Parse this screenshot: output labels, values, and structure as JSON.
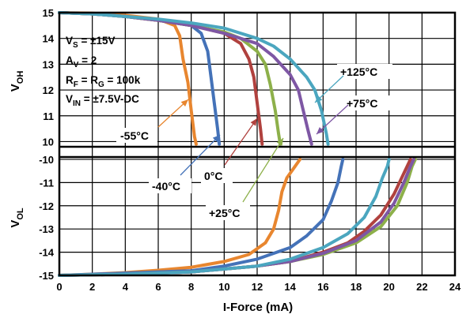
{
  "chart_data": {
    "type": "line",
    "xlabel": "I-Force (mA)",
    "ylabel_top": "V_OH",
    "ylabel_bottom": "V_OL",
    "x_ticks": [
      "0",
      "2",
      "4",
      "6",
      "8",
      "10",
      "12",
      "14",
      "16",
      "18",
      "20",
      "22",
      "24"
    ],
    "y_ticks_top": [
      "15",
      "14",
      "13",
      "12",
      "11",
      "10"
    ],
    "y_ticks_bottom": [
      "-10",
      "-11",
      "-12",
      "-13",
      "-14",
      "-15"
    ],
    "xlim": [
      0,
      24
    ],
    "ylim_top": [
      9.8,
      15
    ],
    "ylim_bottom": [
      -15,
      -9.9
    ],
    "grid": true,
    "conditions": [
      {
        "key": "cond_vs",
        "base": "V",
        "sub": "S",
        "rest": " = ±15V"
      },
      {
        "key": "cond_av",
        "base": "A",
        "sub": "V",
        "rest": " = 2"
      },
      {
        "key": "cond_rf",
        "base": "R",
        "sub": "F",
        "rest": " = R",
        "sub2": "G",
        "rest2": " = 100k"
      },
      {
        "key": "cond_vin",
        "base": "V",
        "sub": "IN",
        "rest": " = ±7.5V-DC"
      }
    ],
    "series": [
      {
        "name": "-55°C",
        "color": "#E8862F",
        "voh": [
          [
            0,
            15
          ],
          [
            2,
            14.98
          ],
          [
            4,
            14.9
          ],
          [
            6,
            14.75
          ],
          [
            7,
            14.5
          ],
          [
            7.3,
            14.1
          ],
          [
            7.5,
            13.2
          ],
          [
            7.8,
            12.3
          ],
          [
            8,
            11.2
          ],
          [
            8.2,
            10.2
          ],
          [
            8.3,
            9.9
          ]
        ],
        "vol": [
          [
            0,
            -15
          ],
          [
            2,
            -14.95
          ],
          [
            4,
            -14.88
          ],
          [
            6,
            -14.78
          ],
          [
            8,
            -14.65
          ],
          [
            10,
            -14.4
          ],
          [
            11.5,
            -14.1
          ],
          [
            12.5,
            -13.6
          ],
          [
            13,
            -13
          ],
          [
            13.3,
            -12.2
          ],
          [
            13.5,
            -11.4
          ],
          [
            13.8,
            -10.8
          ],
          [
            14.3,
            -10.3
          ],
          [
            14.6,
            -10
          ]
        ]
      },
      {
        "name": "-40°C",
        "color": "#4472B8",
        "voh": [
          [
            0,
            15
          ],
          [
            2,
            14.95
          ],
          [
            4,
            14.85
          ],
          [
            6,
            14.7
          ],
          [
            8,
            14.5
          ],
          [
            8.6,
            14.2
          ],
          [
            9,
            13.5
          ],
          [
            9.2,
            12.5
          ],
          [
            9.4,
            11.5
          ],
          [
            9.6,
            10.5
          ],
          [
            9.7,
            9.9
          ]
        ],
        "vol": [
          [
            0,
            -15
          ],
          [
            4,
            -14.9
          ],
          [
            8,
            -14.8
          ],
          [
            10,
            -14.6
          ],
          [
            12,
            -14.3
          ],
          [
            14,
            -13.8
          ],
          [
            15,
            -13.3
          ],
          [
            16,
            -12.6
          ],
          [
            16.5,
            -11.8
          ],
          [
            16.9,
            -11
          ],
          [
            17.1,
            -10.3
          ],
          [
            17.2,
            -10
          ]
        ]
      },
      {
        "name": "0°C",
        "color": "#B0413E",
        "voh": [
          [
            0,
            15
          ],
          [
            2,
            14.95
          ],
          [
            4,
            14.85
          ],
          [
            6,
            14.7
          ],
          [
            8,
            14.5
          ],
          [
            10,
            14.2
          ],
          [
            11,
            13.8
          ],
          [
            11.5,
            13.2
          ],
          [
            11.8,
            12.5
          ],
          [
            12,
            11.5
          ],
          [
            12.2,
            10.5
          ],
          [
            12.3,
            9.9
          ]
        ],
        "vol": [
          [
            0,
            -15
          ],
          [
            4,
            -14.95
          ],
          [
            8,
            -14.85
          ],
          [
            12,
            -14.6
          ],
          [
            14,
            -14.4
          ],
          [
            16,
            -14.0
          ],
          [
            17.5,
            -13.6
          ],
          [
            18.5,
            -13.1
          ],
          [
            19.5,
            -12.4
          ],
          [
            20.3,
            -11.5
          ],
          [
            20.9,
            -10.6
          ],
          [
            21.3,
            -10
          ]
        ]
      },
      {
        "name": "+25°C",
        "color": "#8DB04A",
        "voh": [
          [
            0,
            15
          ],
          [
            2,
            14.95
          ],
          [
            4,
            14.85
          ],
          [
            6,
            14.7
          ],
          [
            8,
            14.5
          ],
          [
            10,
            14.25
          ],
          [
            11,
            14.0
          ],
          [
            12,
            13.5
          ],
          [
            12.5,
            13
          ],
          [
            12.8,
            12.2
          ],
          [
            13.1,
            11.2
          ],
          [
            13.3,
            10.3
          ],
          [
            13.4,
            9.9
          ]
        ],
        "vol": [
          [
            0,
            -15
          ],
          [
            4,
            -14.95
          ],
          [
            8,
            -14.85
          ],
          [
            12,
            -14.6
          ],
          [
            14,
            -14.4
          ],
          [
            16,
            -14.1
          ],
          [
            18,
            -13.6
          ],
          [
            19.5,
            -12.9
          ],
          [
            20.5,
            -12
          ],
          [
            21.1,
            -11
          ],
          [
            21.4,
            -10.3
          ],
          [
            21.6,
            -10
          ]
        ]
      },
      {
        "name": "+75°C",
        "color": "#7E57A4",
        "voh": [
          [
            0,
            15
          ],
          [
            2,
            14.95
          ],
          [
            4,
            14.85
          ],
          [
            6,
            14.7
          ],
          [
            8,
            14.5
          ],
          [
            10,
            14.2
          ],
          [
            12,
            13.8
          ],
          [
            13,
            13.3
          ],
          [
            14,
            12.6
          ],
          [
            14.5,
            12
          ],
          [
            14.8,
            11.2
          ],
          [
            15.1,
            10.4
          ],
          [
            15.3,
            9.9
          ]
        ],
        "vol": [
          [
            0,
            -15
          ],
          [
            4,
            -14.95
          ],
          [
            8,
            -14.85
          ],
          [
            12,
            -14.6
          ],
          [
            14,
            -14.4
          ],
          [
            16,
            -14.05
          ],
          [
            18,
            -13.5
          ],
          [
            19.5,
            -12.7
          ],
          [
            20.3,
            -11.9
          ],
          [
            20.9,
            -11
          ],
          [
            21.3,
            -10.3
          ],
          [
            21.5,
            -10
          ]
        ]
      },
      {
        "name": "+125°C",
        "color": "#4BA6BF",
        "voh": [
          [
            0,
            15
          ],
          [
            2,
            14.95
          ],
          [
            4,
            14.85
          ],
          [
            6,
            14.75
          ],
          [
            8,
            14.6
          ],
          [
            10,
            14.4
          ],
          [
            12,
            14.0
          ],
          [
            13,
            13.7
          ],
          [
            14,
            13.2
          ],
          [
            15,
            12.5
          ],
          [
            15.5,
            12
          ],
          [
            15.9,
            11.2
          ],
          [
            16.2,
            10.3
          ],
          [
            16.3,
            9.9
          ]
        ],
        "vol": [
          [
            0,
            -15
          ],
          [
            4,
            -14.95
          ],
          [
            8,
            -14.85
          ],
          [
            12,
            -14.6
          ],
          [
            14,
            -14.3
          ],
          [
            16,
            -13.8
          ],
          [
            17.5,
            -13.2
          ],
          [
            18.5,
            -12.5
          ],
          [
            19.2,
            -11.6
          ],
          [
            19.6,
            -10.8
          ],
          [
            19.9,
            -10.3
          ],
          [
            20,
            -10
          ]
        ]
      }
    ],
    "series_labels": [
      {
        "series": 0,
        "text": "-55°C"
      },
      {
        "series": 1,
        "text": "-40°C"
      },
      {
        "series": 2,
        "text": "0°C"
      },
      {
        "series": 3,
        "text": "+25°C"
      },
      {
        "series": 4,
        "text": "+75°C"
      },
      {
        "series": 5,
        "text": "+125°C"
      }
    ]
  }
}
